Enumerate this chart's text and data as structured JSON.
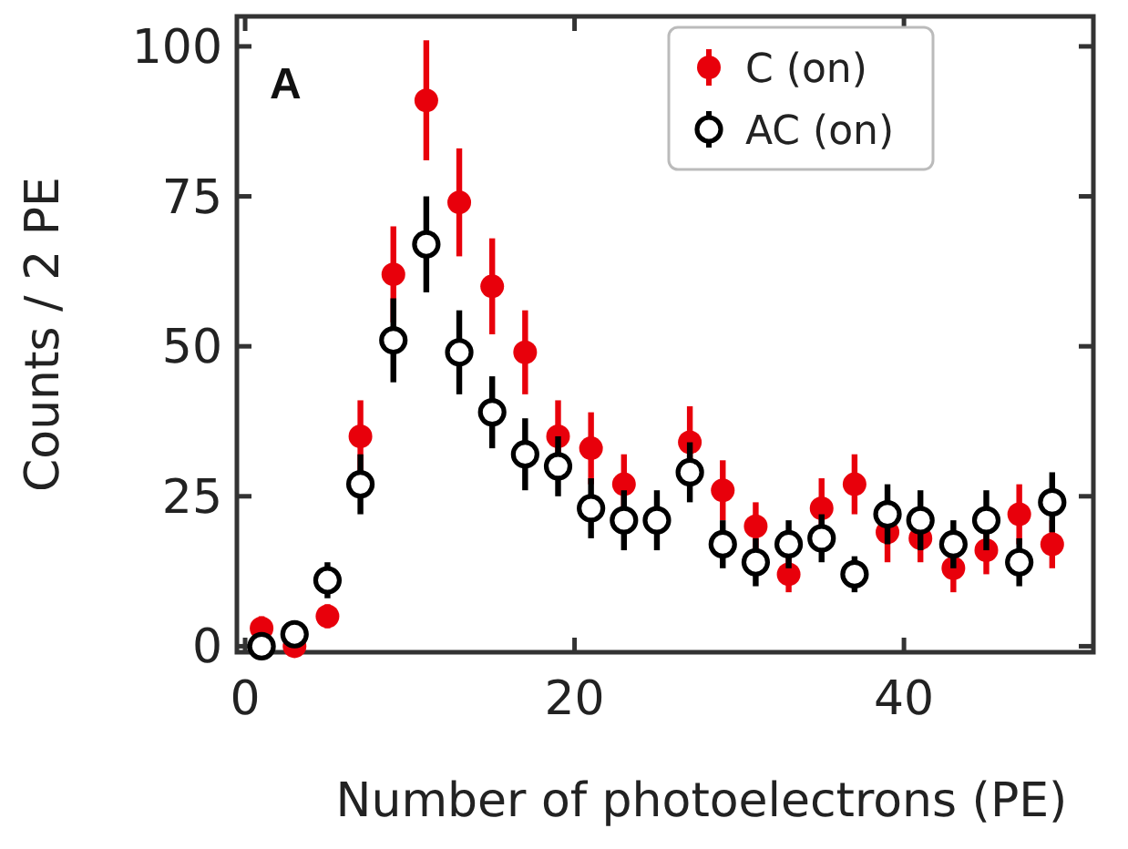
{
  "chart_data": {
    "type": "scatter",
    "xlabel": "Number of photoelectrons (PE)",
    "ylabel": "Counts / 2 PE",
    "annotations": [
      "A"
    ],
    "x": [
      1,
      3,
      5,
      7,
      9,
      11,
      13,
      15,
      17,
      19,
      21,
      23,
      25,
      27,
      29,
      31,
      33,
      35,
      37,
      39,
      41,
      43,
      45,
      47,
      49
    ],
    "series": [
      {
        "name": "C (on)",
        "color": "#e8000b",
        "marker": "circle",
        "values": [
          3,
          0,
          5,
          35,
          62,
          91,
          74,
          60,
          49,
          35,
          33,
          27,
          null,
          34,
          26,
          20,
          12,
          23,
          27,
          19,
          18,
          13,
          16,
          22,
          17
        ],
        "errors": [
          2,
          1,
          2,
          6,
          8,
          10,
          9,
          8,
          7,
          6,
          6,
          5,
          null,
          6,
          5,
          4,
          3,
          5,
          5,
          5,
          4,
          4,
          4,
          5,
          4
        ]
      },
      {
        "name": "AC (on)",
        "color": "#000000",
        "marker": "circle",
        "values": [
          0,
          2,
          11,
          27,
          51,
          67,
          49,
          39,
          32,
          30,
          23,
          21,
          21,
          29,
          17,
          14,
          17,
          18,
          12,
          22,
          21,
          17,
          21,
          14,
          24
        ],
        "errors": [
          1,
          1,
          3,
          5,
          7,
          8,
          7,
          6,
          6,
          5,
          5,
          5,
          5,
          5,
          4,
          4,
          4,
          4,
          3,
          5,
          5,
          4,
          5,
          4,
          5
        ]
      }
    ],
    "xlim": [
      -0.5,
      51.5
    ],
    "ylim": [
      -1,
      105
    ],
    "xticks": [
      0,
      20,
      40
    ],
    "yticks": [
      0,
      25,
      50,
      75,
      100
    ],
    "grid": false,
    "legend": "top right"
  }
}
